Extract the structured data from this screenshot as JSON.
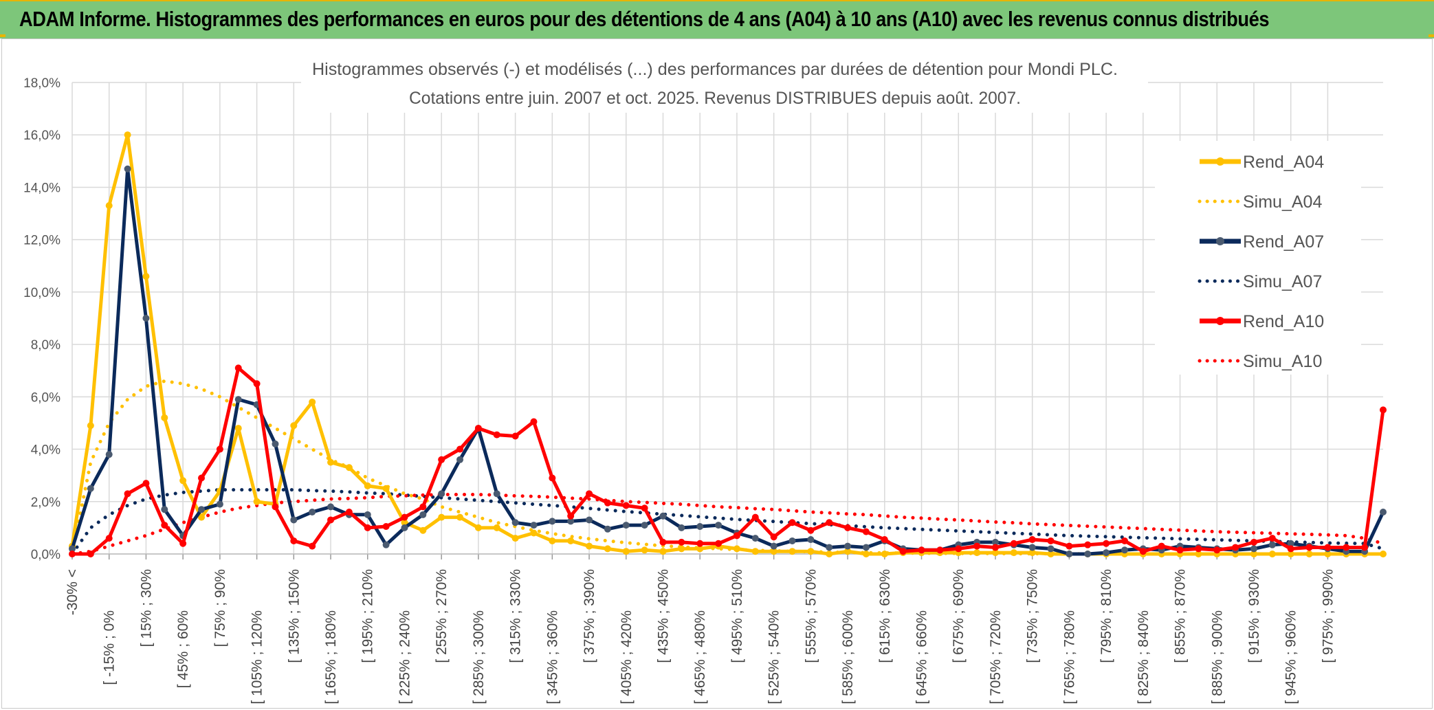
{
  "header": {
    "banner_title": "ADAM Informe. Histogrammes des performances en euros pour des détentions de 4 ans (A04) à 10 ans (A10) avec les revenus connus distribués"
  },
  "colors": {
    "banner": "#7dc67a",
    "accent": "#e8b400",
    "A04": "#ffc000",
    "A07": "#0b2a5b",
    "A10": "#ff0000",
    "grid": "#d9d9d9"
  },
  "chart_data": {
    "type": "line",
    "title_line1": "Histogrammes observés (-) et modélisés (...) des performances par durées de détention pour Mondi PLC.",
    "title_line2": "Cotations entre juin. 2007 et oct. 2025. Revenus DISTRIBUES depuis août. 2007.",
    "ylim": [
      0,
      18
    ],
    "y_ticks": [
      "0,0%",
      "2,0%",
      "4,0%",
      "6,0%",
      "8,0%",
      "10,0%",
      "12,0%",
      "14,0%",
      "16,0%",
      "18,0%"
    ],
    "grid": true,
    "legend_position": "right",
    "x_tick_labels": [
      "-30% <",
      "[ -15% ; 0%",
      "[ 15% ; 30%",
      "[ 45% ; 60%",
      "[ 75% ; 90%",
      "[ 105% ; 120%",
      "[ 135% ; 150%",
      "[ 165% ; 180%",
      "[ 195% ; 210%",
      "[ 225% ; 240%",
      "[ 255% ; 270%",
      "[ 285% ; 300%",
      "[ 315% ; 330%",
      "[ 345% ; 360%",
      "[ 375% ; 390%",
      "[ 405% ; 420%",
      "[ 435% ; 450%",
      "[ 465% ; 480%",
      "[ 495% ; 510%",
      "[ 525% ; 540%",
      "[ 555% ; 570%",
      "[ 585% ; 600%",
      "[ 615% ; 630%",
      "[ 645% ; 660%",
      "[ 675% ; 690%",
      "[ 705% ; 720%",
      "[ 735% ; 750%",
      "[ 765% ; 780%",
      "[ 795% ; 810%",
      "[ 825% ; 840%",
      "[ 855% ; 870%",
      "[ 885% ; 900%",
      "[ 915% ; 930%",
      "[ 945% ; 960%",
      "[ 975% ; 990%"
    ],
    "series": [
      {
        "name": "Rend_A04",
        "style": "solid",
        "color": "#ffc000",
        "values": [
          0.3,
          4.9,
          13.3,
          16.0,
          10.6,
          5.2,
          2.8,
          1.4,
          2.4,
          4.8,
          2.0,
          1.9,
          4.9,
          5.8,
          3.5,
          3.3,
          2.6,
          2.5,
          1.2,
          0.9,
          1.4,
          1.4,
          1.0,
          1.0,
          0.6,
          0.8,
          0.5,
          0.5,
          0.3,
          0.2,
          0.1,
          0.15,
          0.1,
          0.2,
          0.2,
          0.3,
          0.2,
          0.1,
          0.1,
          0.1,
          0.1,
          0.0,
          0.1,
          0.0,
          0.0,
          0.05,
          0.05,
          0.05,
          0.05,
          0.05,
          0.05,
          0.05,
          0.05,
          0.0,
          0.0,
          0.0,
          0.0,
          0.0,
          0.0,
          0.0,
          0.0,
          0.0,
          0.0,
          0.0,
          0.0,
          0.0,
          0.0,
          0.0,
          0.0,
          0.0,
          0.0,
          0.0
        ]
      },
      {
        "name": "Simu_A04",
        "style": "dotted",
        "color": "#ffc000",
        "values": [
          0.0,
          3.5,
          5.0,
          5.9,
          6.4,
          6.6,
          6.5,
          6.3,
          6.0,
          5.6,
          5.2,
          4.8,
          4.4,
          4.0,
          3.6,
          3.3,
          2.9,
          2.6,
          2.3,
          2.1,
          1.8,
          1.6,
          1.4,
          1.2,
          1.05,
          0.9,
          0.78,
          0.67,
          0.58,
          0.5,
          0.43,
          0.37,
          0.31,
          0.27,
          0.23,
          0.2,
          0.17,
          0.14,
          0.12,
          0.1,
          0.09,
          0.07,
          0.06,
          0.05,
          0.04,
          0.035,
          0.03,
          0.025,
          0.02,
          0.02,
          0.015,
          0.01,
          0.01,
          0.01,
          0.01,
          0.0,
          0.0,
          0.0,
          0.0,
          0.0,
          0.0,
          0.0,
          0.0,
          0.0,
          0.0,
          0.0,
          0.0,
          0.0,
          0.0,
          0.0,
          0.0,
          0.0
        ]
      },
      {
        "name": "Rend_A07",
        "style": "solid",
        "color": "#0b2a5b",
        "values": [
          0.2,
          2.5,
          3.8,
          14.7,
          9.0,
          1.7,
          0.7,
          1.7,
          1.9,
          5.9,
          5.7,
          4.2,
          1.3,
          1.6,
          1.8,
          1.5,
          1.5,
          0.35,
          1.0,
          1.5,
          2.3,
          3.6,
          4.8,
          2.3,
          1.2,
          1.1,
          1.25,
          1.25,
          1.3,
          0.95,
          1.1,
          1.1,
          1.45,
          1.0,
          1.05,
          1.1,
          0.8,
          0.6,
          0.3,
          0.5,
          0.55,
          0.25,
          0.3,
          0.25,
          0.5,
          0.2,
          0.15,
          0.15,
          0.35,
          0.45,
          0.45,
          0.35,
          0.25,
          0.2,
          0.0,
          0.0,
          0.05,
          0.15,
          0.2,
          0.15,
          0.3,
          0.25,
          0.2,
          0.15,
          0.2,
          0.35,
          0.4,
          0.3,
          0.2,
          0.1,
          0.1,
          1.6
        ]
      },
      {
        "name": "Simu_A07",
        "style": "dotted",
        "color": "#0b2a5b",
        "values": [
          0.0,
          1.0,
          1.5,
          1.85,
          2.1,
          2.25,
          2.35,
          2.4,
          2.45,
          2.45,
          2.45,
          2.45,
          2.45,
          2.42,
          2.4,
          2.37,
          2.33,
          2.3,
          2.25,
          2.2,
          2.15,
          2.1,
          2.05,
          2.0,
          1.95,
          1.9,
          1.85,
          1.8,
          1.74,
          1.68,
          1.62,
          1.57,
          1.52,
          1.47,
          1.42,
          1.37,
          1.32,
          1.28,
          1.24,
          1.2,
          1.16,
          1.12,
          1.08,
          1.04,
          1.0,
          0.97,
          0.94,
          0.91,
          0.88,
          0.85,
          0.82,
          0.79,
          0.76,
          0.73,
          0.7,
          0.68,
          0.66,
          0.64,
          0.62,
          0.6,
          0.58,
          0.56,
          0.54,
          0.52,
          0.5,
          0.48,
          0.46,
          0.44,
          0.42,
          0.41,
          0.4,
          0.2
        ]
      },
      {
        "name": "Rend_A10",
        "style": "solid",
        "color": "#ff0000",
        "values": [
          0.0,
          0.0,
          0.6,
          2.3,
          2.7,
          1.1,
          0.4,
          2.9,
          4.0,
          7.1,
          6.5,
          1.8,
          0.5,
          0.3,
          1.3,
          1.6,
          1.0,
          1.05,
          1.4,
          1.8,
          3.6,
          4.0,
          4.8,
          4.55,
          4.5,
          5.05,
          2.9,
          1.45,
          2.3,
          1.95,
          1.85,
          1.75,
          0.45,
          0.45,
          0.4,
          0.4,
          0.7,
          1.4,
          0.65,
          1.2,
          0.9,
          1.2,
          1.0,
          0.85,
          0.55,
          0.1,
          0.15,
          0.15,
          0.2,
          0.3,
          0.25,
          0.4,
          0.55,
          0.5,
          0.3,
          0.35,
          0.4,
          0.5,
          0.1,
          0.3,
          0.15,
          0.2,
          0.15,
          0.25,
          0.45,
          0.6,
          0.2,
          0.25,
          0.25,
          0.25,
          0.25,
          5.5
        ]
      },
      {
        "name": "Simu_A10",
        "style": "dotted",
        "color": "#ff0000",
        "values": [
          0.0,
          0.1,
          0.3,
          0.5,
          0.7,
          0.95,
          1.2,
          1.4,
          1.6,
          1.75,
          1.85,
          1.95,
          2.0,
          2.05,
          2.1,
          2.12,
          2.15,
          2.2,
          2.22,
          2.25,
          2.27,
          2.27,
          2.27,
          2.25,
          2.22,
          2.2,
          2.17,
          2.13,
          2.1,
          2.05,
          2.0,
          1.97,
          1.93,
          1.9,
          1.85,
          1.8,
          1.77,
          1.73,
          1.7,
          1.65,
          1.6,
          1.57,
          1.53,
          1.5,
          1.45,
          1.4,
          1.37,
          1.33,
          1.3,
          1.26,
          1.22,
          1.19,
          1.15,
          1.12,
          1.09,
          1.06,
          1.03,
          1.0,
          0.97,
          0.94,
          0.91,
          0.88,
          0.85,
          0.83,
          0.81,
          0.79,
          0.77,
          0.75,
          0.73,
          0.7,
          0.6,
          0.4
        ]
      }
    ]
  }
}
